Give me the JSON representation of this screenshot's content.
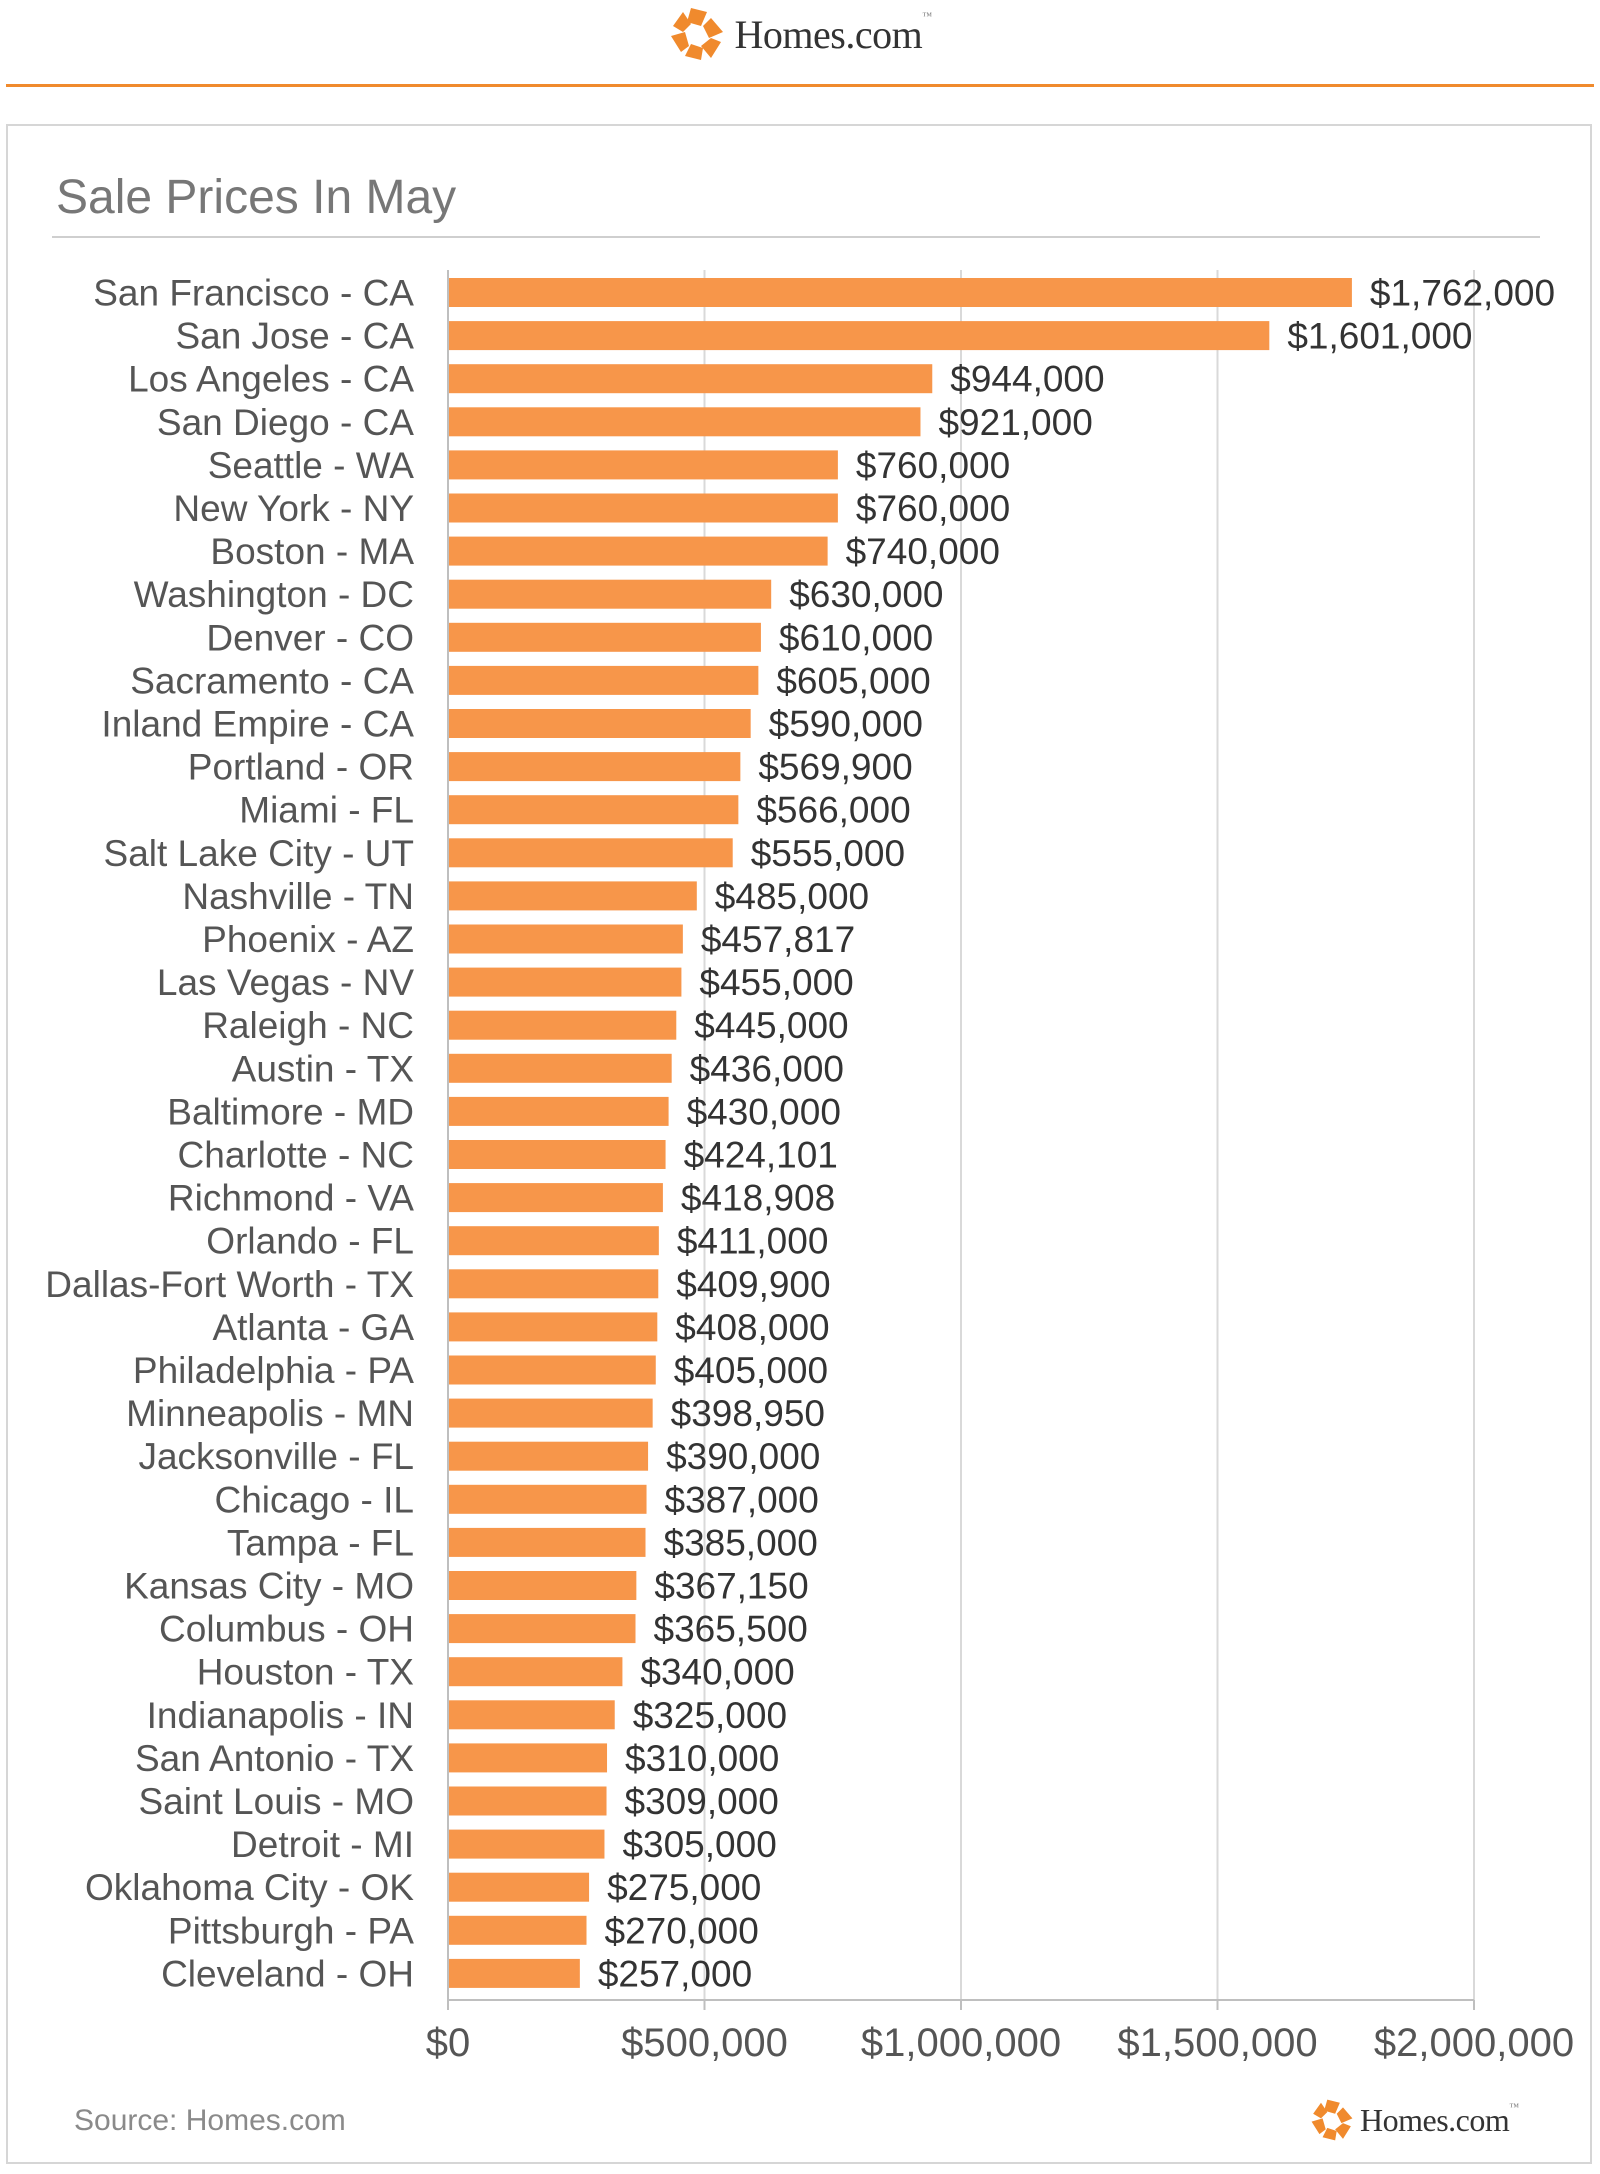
{
  "header": {
    "brand": "Homes.com",
    "tm": "™"
  },
  "footer": {
    "source": "Source: Homes.com",
    "brand": "Homes.com",
    "tm": "™"
  },
  "colors": {
    "bar": "#f7964a",
    "accent": "#f08a2d",
    "grid": "#d9d9d9",
    "text": "#555555"
  },
  "chart_data": {
    "type": "bar",
    "orientation": "horizontal",
    "title": "Sale Prices In May",
    "xlim": [
      0,
      2000000
    ],
    "xticks": [
      0,
      500000,
      1000000,
      1500000,
      2000000
    ],
    "xtick_labels": [
      "$0",
      "$500,000",
      "$1,000,000",
      "$1,500,000",
      "$2,000,000"
    ],
    "grid": true,
    "categories": [
      "San Francisco - CA",
      "San Jose - CA",
      "Los Angeles - CA",
      "San Diego - CA",
      "Seattle - WA",
      "New York - NY",
      "Boston - MA",
      "Washington - DC",
      "Denver - CO",
      "Sacramento - CA",
      "Inland Empire - CA",
      "Portland - OR",
      "Miami - FL",
      "Salt Lake City - UT",
      "Nashville - TN",
      "Phoenix - AZ",
      "Las Vegas - NV",
      "Raleigh - NC",
      "Austin - TX",
      "Baltimore - MD",
      "Charlotte - NC",
      "Richmond - VA",
      "Orlando - FL",
      "Dallas-Fort Worth - TX",
      "Atlanta - GA",
      "Philadelphia - PA",
      "Minneapolis - MN",
      "Jacksonville - FL",
      "Chicago - IL",
      "Tampa - FL",
      "Kansas City - MO",
      "Columbus - OH",
      "Houston - TX",
      "Indianapolis - IN",
      "San Antonio - TX",
      "Saint Louis - MO",
      "Detroit - MI",
      "Oklahoma City - OK",
      "Pittsburgh - PA",
      "Cleveland - OH"
    ],
    "values": [
      1762000,
      1601000,
      944000,
      921000,
      760000,
      760000,
      740000,
      630000,
      610000,
      605000,
      590000,
      569900,
      566000,
      555000,
      485000,
      457817,
      455000,
      445000,
      436000,
      430000,
      424101,
      418908,
      411000,
      409900,
      408000,
      405000,
      398950,
      390000,
      387000,
      385000,
      367150,
      365500,
      340000,
      325000,
      310000,
      309000,
      305000,
      275000,
      270000,
      257000
    ],
    "value_labels": [
      "$1,762,000",
      "$1,601,000",
      "$944,000",
      "$921,000",
      "$760,000",
      "$760,000",
      "$740,000",
      "$630,000",
      "$610,000",
      "$605,000",
      "$590,000",
      "$569,900",
      "$566,000",
      "$555,000",
      "$485,000",
      "$457,817",
      "$455,000",
      "$445,000",
      "$436,000",
      "$430,000",
      "$424,101",
      "$418,908",
      "$411,000",
      "$409,900",
      "$408,000",
      "$405,000",
      "$398,950",
      "$390,000",
      "$387,000",
      "$385,000",
      "$367,150",
      "$365,500",
      "$340,000",
      "$325,000",
      "$310,000",
      "$309,000",
      "$305,000",
      "$275,000",
      "$270,000",
      "$257,000"
    ]
  }
}
